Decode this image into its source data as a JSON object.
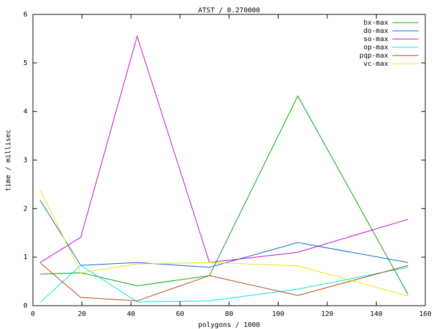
{
  "chart_data": {
    "type": "line",
    "title": "ATST / 0.270000",
    "xlabel": "polygons / 1000",
    "ylabel": "time / millisec",
    "x": [
      3,
      19.5,
      42.5,
      72,
      108,
      153
    ],
    "series": [
      {
        "name": "bx-max",
        "color": "#00a000",
        "values": [
          0.65,
          0.68,
          0.41,
          0.62,
          4.32,
          0.23
        ]
      },
      {
        "name": "do-max",
        "color": "#0060e0",
        "values": [
          2.17,
          0.83,
          0.89,
          0.79,
          1.3,
          0.89
        ]
      },
      {
        "name": "so-max",
        "color": "#c000c0",
        "values": [
          0.89,
          1.41,
          5.55,
          0.89,
          1.1,
          1.78
        ]
      },
      {
        "name": "op-max",
        "color": "#00e0e0",
        "values": [
          0.07,
          0.83,
          0.08,
          0.1,
          0.34,
          0.79
        ]
      },
      {
        "name": "pqp-max",
        "color": "#b04010",
        "values": [
          0.88,
          0.17,
          0.1,
          0.62,
          0.21,
          0.83
        ]
      },
      {
        "name": "vc-max",
        "color": "#e8e800",
        "values": [
          2.39,
          0.68,
          0.86,
          0.89,
          0.82,
          0.2
        ]
      }
    ],
    "xlim": [
      0,
      160
    ],
    "xticks": [
      0,
      20,
      40,
      60,
      80,
      100,
      120,
      140,
      160
    ],
    "ylim": [
      0,
      6
    ],
    "yticks": [
      0,
      1,
      2,
      3,
      4,
      5,
      6
    ],
    "legend": "top-right"
  }
}
